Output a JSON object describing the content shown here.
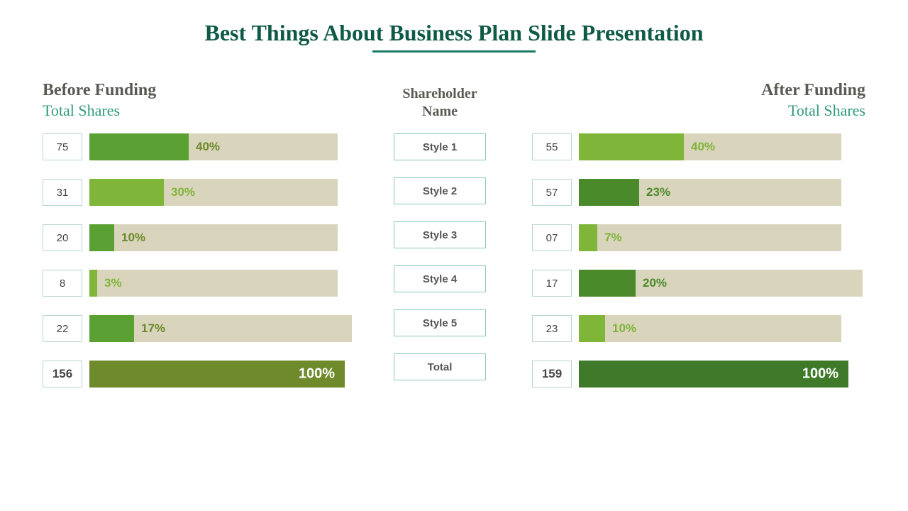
{
  "title": "Best Things About Business Plan Slide Presentation",
  "title_color": "#0f5a47",
  "underline_color": "#1a7a64",
  "track_color": "#d9d4bc",
  "colors": {
    "green_dark": "#4a8a2a",
    "green_mid": "#5aa032",
    "green_light": "#7fb539",
    "olive": "#6e8a2a",
    "forest": "#3f7a2a",
    "head_gray": "#5a5a55",
    "sub_teal": "#2f9a7a"
  },
  "left": {
    "heading": "Before Funding",
    "subheading": "Total Shares",
    "bar_base_width": 350,
    "rows": [
      {
        "num": "75",
        "pct": 40,
        "label": "40%",
        "fill": "#5aa032",
        "label_color": "#6e8a2a",
        "track_width": 350,
        "label_in": false
      },
      {
        "num": "31",
        "pct": 30,
        "label": "30%",
        "fill": "#7fb539",
        "label_color": "#7fb539",
        "track_width": 350,
        "label_in": false
      },
      {
        "num": "20",
        "pct": 10,
        "label": "10%",
        "fill": "#5aa032",
        "label_color": "#6e8a2a",
        "track_width": 350,
        "label_in": false
      },
      {
        "num": "8",
        "pct": 3,
        "label": "3%",
        "fill": "#7fb539",
        "label_color": "#7fb539",
        "track_width": 350,
        "label_in": false
      },
      {
        "num": "22",
        "pct": 17,
        "label": "17%",
        "fill": "#5aa032",
        "label_color": "#6e8a2a",
        "track_width": 370,
        "label_in": false
      }
    ],
    "total": {
      "num": "156",
      "pct": 100,
      "label": "100%",
      "fill": "#6e8a2a",
      "label_color": "#ffffff",
      "track_width": 360
    }
  },
  "middle": {
    "heading": "Shareholder\nName",
    "items": [
      "Style 1",
      "Style 2",
      "Style 3",
      "Style 4",
      "Style 5"
    ],
    "total_label": "Total"
  },
  "right": {
    "heading": "After Funding",
    "subheading": "Total Shares",
    "bar_base_width": 370,
    "rows": [
      {
        "num": "55",
        "pct": 40,
        "label": "40%",
        "fill": "#7fb539",
        "label_color": "#7fb539",
        "track_width": 370,
        "label_in": false
      },
      {
        "num": "57",
        "pct": 23,
        "label": "23%",
        "fill": "#4a8a2a",
        "label_color": "#4a8a2a",
        "track_width": 370,
        "label_in": false
      },
      {
        "num": "07",
        "pct": 7,
        "label": "7%",
        "fill": "#7fb539",
        "label_color": "#7fb539",
        "track_width": 370,
        "label_in": false
      },
      {
        "num": "17",
        "pct": 20,
        "label": "20%",
        "fill": "#4a8a2a",
        "label_color": "#4a8a2a",
        "track_width": 400,
        "label_in": false
      },
      {
        "num": "23",
        "pct": 10,
        "label": "10%",
        "fill": "#7fb539",
        "label_color": "#7fb539",
        "track_width": 370,
        "label_in": false
      }
    ],
    "total": {
      "num": "159",
      "pct": 100,
      "label": "100%",
      "fill": "#3f7a2a",
      "label_color": "#ffffff",
      "track_width": 380
    }
  }
}
